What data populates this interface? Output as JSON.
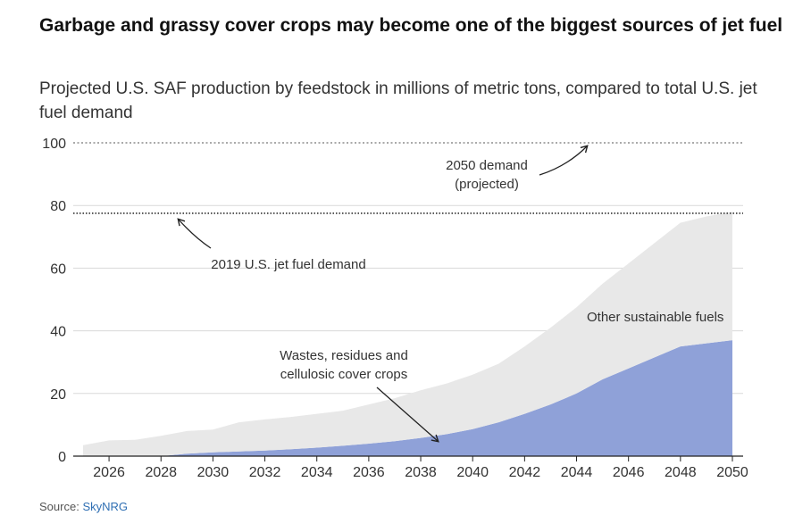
{
  "chart_data": {
    "type": "area",
    "title": "Garbage and grassy cover crops may become one of the biggest sources of jet fuel",
    "subtitle": "Projected U.S. SAF production by feedstock in millions of metric tons, compared to total U.S. jet fuel demand",
    "x": [
      2025,
      2026,
      2027,
      2028,
      2029,
      2030,
      2031,
      2032,
      2033,
      2034,
      2035,
      2036,
      2037,
      2038,
      2039,
      2040,
      2041,
      2042,
      2043,
      2044,
      2045,
      2046,
      2047,
      2048,
      2049,
      2050
    ],
    "xticks": [
      2026,
      2028,
      2030,
      2032,
      2034,
      2036,
      2038,
      2040,
      2042,
      2044,
      2046,
      2048,
      2050
    ],
    "yticks": [
      0,
      20,
      40,
      60,
      80,
      100
    ],
    "ylim": [
      0,
      100
    ],
    "series": [
      {
        "name": "Wastes, residues and cellulosic cover crops",
        "color": "#8fa1d8",
        "values": [
          0,
          0,
          0,
          0,
          0.8,
          1.2,
          1.5,
          1.8,
          2.2,
          2.7,
          3.3,
          4.0,
          4.8,
          5.8,
          7.0,
          8.6,
          10.8,
          13.5,
          16.5,
          20.0,
          24.5,
          28.0,
          31.5,
          35.0,
          36.0,
          37.0
        ]
      },
      {
        "name": "Other sustainable fuels",
        "color": "#e8e8e8",
        "values": [
          3.5,
          5.0,
          5.2,
          6.5,
          7.2,
          7.3,
          9.3,
          9.9,
          10.3,
          10.8,
          11.2,
          12.5,
          13.7,
          15.2,
          16.2,
          17.4,
          18.7,
          21.5,
          24.5,
          27.5,
          30.5,
          33.5,
          36.5,
          39.5,
          40.5,
          41.0
        ]
      }
    ],
    "reference_lines": [
      {
        "label": "2019 U.S. jet fuel demand",
        "value": 77.5
      },
      {
        "label": "2050 demand (projected)",
        "value": 100
      }
    ],
    "annotations": {
      "wastes_line1": "Wastes, residues and",
      "wastes_line2": "cellulosic cover crops",
      "other": "Other sustainable fuels",
      "demand_2019": "2019 U.S. jet fuel demand",
      "demand_2050_line1": "2050 demand",
      "demand_2050_line2": "(projected)"
    },
    "grid": true
  },
  "source": {
    "label": "Source:",
    "name": "SkyNRG"
  }
}
